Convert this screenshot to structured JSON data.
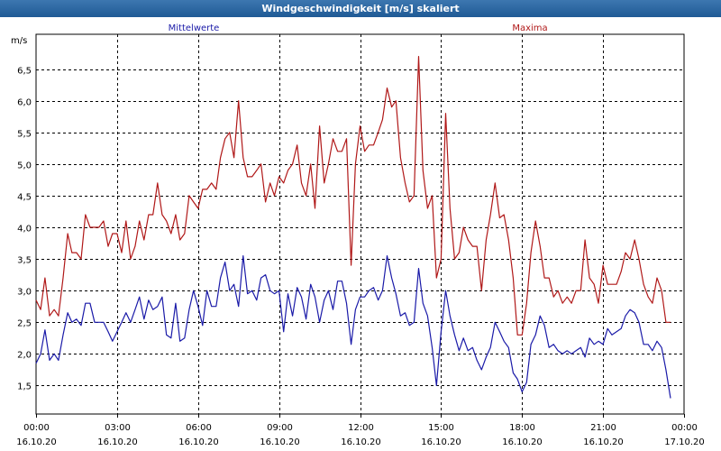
{
  "window": {
    "title": "Windgeschwindigkeit [m/s] skaliert"
  },
  "chart_data": {
    "type": "line",
    "ylabel": "m/s",
    "ylim": [
      1.05,
      7.05
    ],
    "yticks": [
      "1,5",
      "2,0",
      "2,5",
      "3,0",
      "3,5",
      "4,0",
      "4,5",
      "5,0",
      "5,5",
      "6,0",
      "6,5"
    ],
    "ytick_values": [
      1.5,
      2.0,
      2.5,
      3.0,
      3.5,
      4.0,
      4.5,
      5.0,
      5.5,
      6.0,
      6.5
    ],
    "xlim_hours": [
      0,
      24
    ],
    "xticks": [
      {
        "hour": 0,
        "time": "00:00",
        "date": "16.10.20"
      },
      {
        "hour": 3,
        "time": "03:00",
        "date": "16.10.20"
      },
      {
        "hour": 6,
        "time": "06:00",
        "date": "16.10.20"
      },
      {
        "hour": 9,
        "time": "09:00",
        "date": "16.10.20"
      },
      {
        "hour": 12,
        "time": "12:00",
        "date": "16.10.20"
      },
      {
        "hour": 15,
        "time": "15:00",
        "date": "16.10.20"
      },
      {
        "hour": 18,
        "time": "18:00",
        "date": "16.10.20"
      },
      {
        "hour": 21,
        "time": "21:00",
        "date": "16.10.20"
      },
      {
        "hour": 24,
        "time": "00:00",
        "date": "17.10.20"
      }
    ],
    "grid": true,
    "legend_placement": "top",
    "series": [
      {
        "name": "Mittelwerte",
        "color": "#1a1aa8",
        "points": [
          [
            0.0,
            1.85
          ],
          [
            0.17,
            2.0
          ],
          [
            0.33,
            2.38
          ],
          [
            0.5,
            1.9
          ],
          [
            0.67,
            2.0
          ],
          [
            0.83,
            1.9
          ],
          [
            1.0,
            2.3
          ],
          [
            1.17,
            2.65
          ],
          [
            1.33,
            2.5
          ],
          [
            1.5,
            2.55
          ],
          [
            1.67,
            2.45
          ],
          [
            1.83,
            2.8
          ],
          [
            2.0,
            2.8
          ],
          [
            2.17,
            2.5
          ],
          [
            2.33,
            2.5
          ],
          [
            2.5,
            2.5
          ],
          [
            2.67,
            2.35
          ],
          [
            2.83,
            2.2
          ],
          [
            3.0,
            2.35
          ],
          [
            3.17,
            2.5
          ],
          [
            3.33,
            2.65
          ],
          [
            3.5,
            2.5
          ],
          [
            3.67,
            2.7
          ],
          [
            3.83,
            2.9
          ],
          [
            4.0,
            2.55
          ],
          [
            4.17,
            2.85
          ],
          [
            4.33,
            2.7
          ],
          [
            4.5,
            2.75
          ],
          [
            4.67,
            2.9
          ],
          [
            4.83,
            2.3
          ],
          [
            5.0,
            2.25
          ],
          [
            5.17,
            2.8
          ],
          [
            5.33,
            2.2
          ],
          [
            5.5,
            2.25
          ],
          [
            5.67,
            2.7
          ],
          [
            5.83,
            3.0
          ],
          [
            6.0,
            2.75
          ],
          [
            6.17,
            2.45
          ],
          [
            6.33,
            3.0
          ],
          [
            6.5,
            2.75
          ],
          [
            6.67,
            2.75
          ],
          [
            6.83,
            3.2
          ],
          [
            7.0,
            3.45
          ],
          [
            7.17,
            3.0
          ],
          [
            7.33,
            3.1
          ],
          [
            7.5,
            2.75
          ],
          [
            7.67,
            3.55
          ],
          [
            7.83,
            2.95
          ],
          [
            8.0,
            3.0
          ],
          [
            8.17,
            2.85
          ],
          [
            8.33,
            3.2
          ],
          [
            8.5,
            3.25
          ],
          [
            8.67,
            3.0
          ],
          [
            8.83,
            2.95
          ],
          [
            9.0,
            3.0
          ],
          [
            9.17,
            2.35
          ],
          [
            9.33,
            2.95
          ],
          [
            9.5,
            2.6
          ],
          [
            9.67,
            3.05
          ],
          [
            9.83,
            2.9
          ],
          [
            10.0,
            2.55
          ],
          [
            10.17,
            3.1
          ],
          [
            10.33,
            2.9
          ],
          [
            10.5,
            2.5
          ],
          [
            10.67,
            2.85
          ],
          [
            10.83,
            3.0
          ],
          [
            11.0,
            2.7
          ],
          [
            11.17,
            3.15
          ],
          [
            11.33,
            3.15
          ],
          [
            11.5,
            2.8
          ],
          [
            11.67,
            2.15
          ],
          [
            11.83,
            2.7
          ],
          [
            12.0,
            2.9
          ],
          [
            12.17,
            2.9
          ],
          [
            12.33,
            3.0
          ],
          [
            12.5,
            3.05
          ],
          [
            12.67,
            2.85
          ],
          [
            12.83,
            3.0
          ],
          [
            13.0,
            3.55
          ],
          [
            13.17,
            3.2
          ],
          [
            13.33,
            2.95
          ],
          [
            13.5,
            2.6
          ],
          [
            13.67,
            2.65
          ],
          [
            13.83,
            2.45
          ],
          [
            14.0,
            2.5
          ],
          [
            14.17,
            3.35
          ],
          [
            14.33,
            2.8
          ],
          [
            14.5,
            2.6
          ],
          [
            14.67,
            2.1
          ],
          [
            14.83,
            1.5
          ],
          [
            15.0,
            2.35
          ],
          [
            15.17,
            3.0
          ],
          [
            15.33,
            2.6
          ],
          [
            15.5,
            2.3
          ],
          [
            15.67,
            2.05
          ],
          [
            15.83,
            2.25
          ],
          [
            16.0,
            2.05
          ],
          [
            16.17,
            2.1
          ],
          [
            16.33,
            1.9
          ],
          [
            16.5,
            1.75
          ],
          [
            16.67,
            1.95
          ],
          [
            16.83,
            2.1
          ],
          [
            17.0,
            2.5
          ],
          [
            17.17,
            2.35
          ],
          [
            17.33,
            2.2
          ],
          [
            17.5,
            2.1
          ],
          [
            17.67,
            1.7
          ],
          [
            17.83,
            1.6
          ],
          [
            18.0,
            1.4
          ],
          [
            18.17,
            1.55
          ],
          [
            18.33,
            2.15
          ],
          [
            18.5,
            2.3
          ],
          [
            18.67,
            2.6
          ],
          [
            18.83,
            2.45
          ],
          [
            19.0,
            2.1
          ],
          [
            19.17,
            2.15
          ],
          [
            19.33,
            2.05
          ],
          [
            19.5,
            2.0
          ],
          [
            19.67,
            2.05
          ],
          [
            19.83,
            2.0
          ],
          [
            20.0,
            2.05
          ],
          [
            20.17,
            2.1
          ],
          [
            20.33,
            1.95
          ],
          [
            20.5,
            2.25
          ],
          [
            20.67,
            2.15
          ],
          [
            20.83,
            2.2
          ],
          [
            21.0,
            2.15
          ],
          [
            21.17,
            2.4
          ],
          [
            21.33,
            2.3
          ],
          [
            21.5,
            2.35
          ],
          [
            21.67,
            2.4
          ],
          [
            21.83,
            2.6
          ],
          [
            22.0,
            2.7
          ],
          [
            22.17,
            2.65
          ],
          [
            22.33,
            2.5
          ],
          [
            22.5,
            2.15
          ],
          [
            22.67,
            2.15
          ],
          [
            22.83,
            2.05
          ],
          [
            23.0,
            2.2
          ],
          [
            23.17,
            2.1
          ],
          [
            23.33,
            1.75
          ],
          [
            23.5,
            1.3
          ]
        ]
      },
      {
        "name": "Maxima",
        "color": "#b01818",
        "points": [
          [
            0.0,
            2.85
          ],
          [
            0.17,
            2.7
          ],
          [
            0.33,
            3.2
          ],
          [
            0.5,
            2.6
          ],
          [
            0.67,
            2.7
          ],
          [
            0.83,
            2.6
          ],
          [
            1.0,
            3.2
          ],
          [
            1.17,
            3.9
          ],
          [
            1.33,
            3.6
          ],
          [
            1.5,
            3.6
          ],
          [
            1.67,
            3.5
          ],
          [
            1.83,
            4.2
          ],
          [
            2.0,
            4.0
          ],
          [
            2.17,
            4.0
          ],
          [
            2.33,
            4.0
          ],
          [
            2.5,
            4.1
          ],
          [
            2.67,
            3.7
          ],
          [
            2.83,
            3.9
          ],
          [
            3.0,
            3.9
          ],
          [
            3.17,
            3.6
          ],
          [
            3.33,
            4.1
          ],
          [
            3.5,
            3.5
          ],
          [
            3.67,
            3.7
          ],
          [
            3.83,
            4.1
          ],
          [
            4.0,
            3.8
          ],
          [
            4.17,
            4.2
          ],
          [
            4.33,
            4.2
          ],
          [
            4.5,
            4.7
          ],
          [
            4.67,
            4.2
          ],
          [
            4.83,
            4.1
          ],
          [
            5.0,
            3.9
          ],
          [
            5.17,
            4.2
          ],
          [
            5.33,
            3.8
          ],
          [
            5.5,
            3.9
          ],
          [
            5.67,
            4.5
          ],
          [
            5.83,
            4.4
          ],
          [
            6.0,
            4.3
          ],
          [
            6.17,
            4.6
          ],
          [
            6.33,
            4.6
          ],
          [
            6.5,
            4.7
          ],
          [
            6.67,
            4.6
          ],
          [
            6.83,
            5.1
          ],
          [
            7.0,
            5.4
          ],
          [
            7.17,
            5.5
          ],
          [
            7.33,
            5.1
          ],
          [
            7.5,
            6.0
          ],
          [
            7.67,
            5.1
          ],
          [
            7.83,
            4.8
          ],
          [
            8.0,
            4.8
          ],
          [
            8.17,
            4.9
          ],
          [
            8.33,
            5.0
          ],
          [
            8.5,
            4.4
          ],
          [
            8.67,
            4.7
          ],
          [
            8.83,
            4.5
          ],
          [
            9.0,
            4.8
          ],
          [
            9.17,
            4.7
          ],
          [
            9.33,
            4.9
          ],
          [
            9.5,
            5.0
          ],
          [
            9.67,
            5.3
          ],
          [
            9.83,
            4.7
          ],
          [
            10.0,
            4.5
          ],
          [
            10.17,
            5.0
          ],
          [
            10.33,
            4.3
          ],
          [
            10.5,
            5.6
          ],
          [
            10.67,
            4.7
          ],
          [
            10.83,
            5.0
          ],
          [
            11.0,
            5.4
          ],
          [
            11.17,
            5.2
          ],
          [
            11.33,
            5.2
          ],
          [
            11.5,
            5.4
          ],
          [
            11.67,
            3.4
          ],
          [
            11.83,
            5.0
          ],
          [
            12.0,
            5.6
          ],
          [
            12.17,
            5.2
          ],
          [
            12.33,
            5.3
          ],
          [
            12.5,
            5.3
          ],
          [
            12.67,
            5.5
          ],
          [
            12.83,
            5.7
          ],
          [
            13.0,
            6.2
          ],
          [
            13.17,
            5.9
          ],
          [
            13.33,
            6.0
          ],
          [
            13.5,
            5.1
          ],
          [
            13.67,
            4.7
          ],
          [
            13.83,
            4.4
          ],
          [
            14.0,
            4.5
          ],
          [
            14.17,
            6.7
          ],
          [
            14.33,
            4.9
          ],
          [
            14.5,
            4.3
          ],
          [
            14.67,
            4.5
          ],
          [
            14.83,
            3.2
          ],
          [
            15.0,
            3.5
          ],
          [
            15.17,
            5.8
          ],
          [
            15.33,
            4.3
          ],
          [
            15.5,
            3.5
          ],
          [
            15.67,
            3.6
          ],
          [
            15.83,
            4.0
          ],
          [
            16.0,
            3.8
          ],
          [
            16.17,
            3.7
          ],
          [
            16.33,
            3.7
          ],
          [
            16.5,
            3.0
          ],
          [
            16.67,
            3.8
          ],
          [
            16.83,
            4.2
          ],
          [
            17.0,
            4.7
          ],
          [
            17.17,
            4.15
          ],
          [
            17.33,
            4.2
          ],
          [
            17.5,
            3.8
          ],
          [
            17.67,
            3.2
          ],
          [
            17.83,
            2.3
          ],
          [
            18.0,
            2.3
          ],
          [
            18.17,
            2.8
          ],
          [
            18.33,
            3.6
          ],
          [
            18.5,
            4.1
          ],
          [
            18.67,
            3.7
          ],
          [
            18.83,
            3.2
          ],
          [
            19.0,
            3.2
          ],
          [
            19.17,
            2.9
          ],
          [
            19.33,
            3.0
          ],
          [
            19.5,
            2.8
          ],
          [
            19.67,
            2.9
          ],
          [
            19.83,
            2.8
          ],
          [
            20.0,
            3.0
          ],
          [
            20.17,
            3.0
          ],
          [
            20.33,
            3.8
          ],
          [
            20.5,
            3.2
          ],
          [
            20.67,
            3.1
          ],
          [
            20.83,
            2.8
          ],
          [
            21.0,
            3.4
          ],
          [
            21.17,
            3.1
          ],
          [
            21.33,
            3.1
          ],
          [
            21.5,
            3.1
          ],
          [
            21.67,
            3.3
          ],
          [
            21.83,
            3.6
          ],
          [
            22.0,
            3.5
          ],
          [
            22.17,
            3.8
          ],
          [
            22.33,
            3.5
          ],
          [
            22.5,
            3.1
          ],
          [
            22.67,
            2.9
          ],
          [
            22.83,
            2.8
          ],
          [
            23.0,
            3.2
          ],
          [
            23.17,
            3.0
          ],
          [
            23.33,
            2.5
          ],
          [
            23.5,
            2.5
          ]
        ]
      }
    ]
  }
}
